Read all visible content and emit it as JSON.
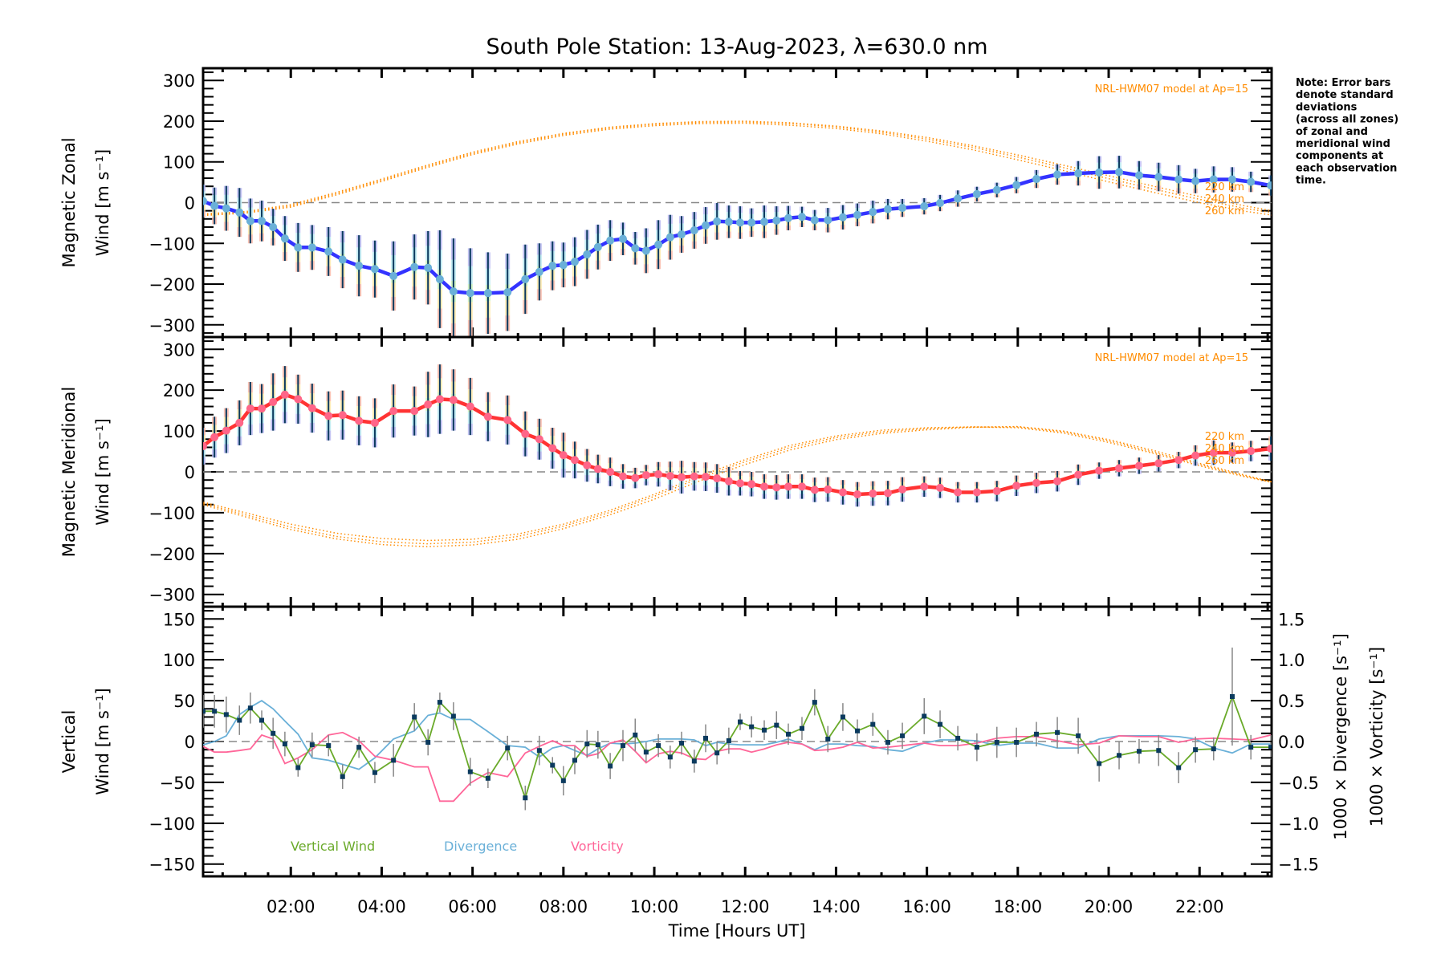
{
  "chart_data": [
    {
      "panel": "zonal",
      "type": "line",
      "title": "South Pole Station: 13-Aug-2023, λ=630.0 nm",
      "ylabel": [
        "Magnetic Zonal",
        "Wind [m s⁻¹]"
      ],
      "ylim": [
        -330,
        330
      ],
      "yticks": [
        300,
        200,
        100,
        0,
        -100,
        -200,
        -300
      ],
      "model_label": "NRL-HWM07 model at Ap=15",
      "model_altitude_labels": [
        "220 km",
        "240 km",
        "260 km"
      ],
      "series_color": "#3333ff",
      "marker_color": "#6ab0d8",
      "errorbar_color": "#0b3a5e",
      "model_color": "#ff8c00",
      "values": [
        4,
        -8,
        -14,
        -24,
        -45,
        -45,
        -60,
        -88,
        -110,
        -110,
        -120,
        -140,
        -155,
        -163,
        -180,
        -158,
        -160,
        -188,
        -218,
        -222,
        -222,
        -220,
        -188,
        -170,
        -155,
        -153,
        -145,
        -127,
        -109,
        -93,
        -89,
        -112,
        -118,
        -103,
        -85,
        -78,
        -68,
        -56,
        -46,
        -47,
        -49,
        -49,
        -47,
        -44,
        -38,
        -35,
        -43,
        -43,
        -36,
        -30,
        -23,
        -16,
        -13,
        -9,
        -1,
        10,
        21,
        31,
        43,
        58,
        69,
        72,
        74,
        75,
        67,
        63,
        57,
        53,
        57,
        57,
        51,
        42
      ],
      "sigma": [
        40,
        45,
        55,
        60,
        55,
        50,
        45,
        55,
        60,
        55,
        60,
        70,
        75,
        70,
        85,
        80,
        90,
        120,
        130,
        110,
        100,
        95,
        85,
        70,
        60,
        55,
        60,
        60,
        55,
        50,
        40,
        40,
        55,
        60,
        55,
        45,
        45,
        45,
        45,
        40,
        40,
        35,
        40,
        35,
        30,
        25,
        25,
        30,
        30,
        28,
        28,
        25,
        22,
        20,
        20,
        20,
        18,
        18,
        20,
        22,
        25,
        30,
        40,
        40,
        35,
        35,
        35,
        30,
        32,
        30,
        25,
        25
      ],
      "models": [
        {
          "name": "220 km",
          "values": [
            -28,
            -22,
            -5,
            25,
            58,
            92,
            124,
            150,
            170,
            185,
            194,
            199,
            200,
            196,
            188,
            176,
            160,
            140,
            117,
            92,
            66,
            40,
            15,
            -8,
            -28
          ]
        },
        {
          "name": "240 km",
          "values": [
            -30,
            -24,
            -8,
            22,
            55,
            89,
            121,
            147,
            168,
            183,
            192,
            197,
            198,
            194,
            186,
            173,
            156,
            136,
            112,
            86,
            59,
            33,
            8,
            -14,
            -32
          ]
        },
        {
          "name": "260 km",
          "values": [
            -32,
            -26,
            -11,
            19,
            52,
            86,
            118,
            144,
            165,
            180,
            189,
            194,
            195,
            190,
            182,
            169,
            151,
            130,
            105,
            79,
            51,
            25,
            0,
            -21,
            -37
          ]
        }
      ]
    },
    {
      "panel": "meridional",
      "type": "line",
      "ylabel": [
        "Magnetic Meridional",
        "Wind [m s⁻¹]"
      ],
      "ylim": [
        -330,
        330
      ],
      "yticks": [
        300,
        200,
        100,
        0,
        -100,
        -200,
        -300
      ],
      "model_label": "NRL-HWM07 model at Ap=15",
      "model_altitude_labels": [
        "220 km",
        "240 km",
        "260 km"
      ],
      "series_color": "#ff3333",
      "marker_color": "#ff6688",
      "errorbar_color": "#0b3a5e",
      "model_color": "#ff8c00",
      "values": [
        63,
        85,
        101,
        120,
        155,
        155,
        171,
        189,
        178,
        156,
        137,
        139,
        125,
        120,
        149,
        149,
        165,
        178,
        176,
        160,
        135,
        127,
        93,
        80,
        58,
        41,
        29,
        16,
        7,
        0,
        -11,
        -15,
        -8,
        -6,
        -10,
        -13,
        -11,
        -12,
        -16,
        -23,
        -28,
        -30,
        -36,
        -38,
        -36,
        -36,
        -44,
        -43,
        -50,
        -55,
        -53,
        -52,
        -43,
        -36,
        -39,
        -50,
        -50,
        -47,
        -34,
        -27,
        -23,
        -7,
        3,
        9,
        15,
        21,
        29,
        40,
        47,
        47,
        51,
        57
      ],
      "sigma": [
        45,
        50,
        55,
        55,
        65,
        60,
        70,
        70,
        60,
        60,
        60,
        60,
        60,
        60,
        65,
        60,
        80,
        85,
        75,
        70,
        60,
        60,
        55,
        50,
        50,
        55,
        45,
        40,
        35,
        35,
        30,
        25,
        25,
        30,
        35,
        40,
        35,
        35,
        35,
        35,
        30,
        30,
        30,
        30,
        30,
        30,
        30,
        30,
        30,
        30,
        30,
        30,
        30,
        25,
        25,
        25,
        25,
        25,
        25,
        25,
        25,
        25,
        20,
        20,
        20,
        20,
        20,
        25,
        30,
        25,
        25,
        30
      ],
      "models": [
        {
          "name": "220 km",
          "values": [
            -72,
            -100,
            -128,
            -150,
            -163,
            -168,
            -165,
            -152,
            -128,
            -95,
            -55,
            -10,
            30,
            65,
            88,
            102,
            108,
            110,
            108,
            95,
            72,
            45,
            15,
            -12,
            -35
          ]
        },
        {
          "name": "240 km",
          "values": [
            -75,
            -105,
            -135,
            -158,
            -171,
            -176,
            -172,
            -158,
            -133,
            -100,
            -60,
            -15,
            25,
            60,
            84,
            98,
            106,
            110,
            110,
            98,
            76,
            48,
            18,
            -10,
            -35
          ]
        },
        {
          "name": "260 km",
          "values": [
            -78,
            -110,
            -141,
            -164,
            -178,
            -183,
            -179,
            -165,
            -139,
            -106,
            -67,
            -22,
            18,
            54,
            79,
            94,
            103,
            109,
            111,
            100,
            79,
            52,
            21,
            -8,
            -36
          ]
        }
      ]
    },
    {
      "panel": "vertical",
      "type": "line",
      "ylabel": [
        "Vertical",
        "Wind [m s⁻¹]"
      ],
      "ylim": [
        -165,
        165
      ],
      "yticks": [
        150,
        100,
        50,
        0,
        -50,
        -100,
        -150
      ],
      "y2label_divergence": "1000 × Divergence [s⁻¹]",
      "y2label_vorticity": "1000 × Vorticity [s⁻¹]",
      "y2lim": [
        -1.65,
        1.65
      ],
      "y2ticks": [
        "1.5",
        "1.0",
        "0.5",
        "0.0",
        "−0.5",
        "−1.0",
        "−1.5"
      ],
      "xlabel": "Time [Hours UT]",
      "xlim_hours": [
        0.07,
        23.57
      ],
      "xticks": [
        "02:00",
        "04:00",
        "06:00",
        "08:00",
        "10:00",
        "12:00",
        "14:00",
        "16:00",
        "18:00",
        "20:00",
        "22:00"
      ],
      "legend": [
        {
          "label": "Vertical Wind",
          "color": "#6aaa2a"
        },
        {
          "label": "Divergence",
          "color": "#6ab0d8"
        },
        {
          "label": "Vorticity",
          "color": "#ff6699"
        }
      ],
      "series": [
        {
          "name": "Vertical Wind",
          "values": [
            37,
            37,
            33,
            26,
            41,
            26,
            10,
            -3,
            -32,
            -4,
            -5,
            -43,
            -7,
            -38,
            -23,
            30,
            -1,
            48,
            31,
            -37,
            -45,
            -8,
            -69,
            -11,
            -29,
            -48,
            -23,
            -3,
            -4,
            -30,
            -5,
            8,
            -13,
            -5,
            -19,
            -2,
            -24,
            4,
            -14,
            1,
            24,
            18,
            14,
            20,
            9,
            16,
            48,
            3,
            30,
            13,
            21,
            -1,
            7,
            31,
            21,
            4,
            -7,
            -1,
            -1,
            9,
            11,
            7,
            -27,
            -17,
            -12,
            -11,
            -32,
            -10,
            -9,
            55,
            -7,
            -7
          ],
          "sigma": [
            20,
            20,
            22,
            18,
            19,
            12,
            19,
            15,
            11,
            15,
            13,
            15,
            13,
            13,
            20,
            17,
            16,
            12,
            17,
            17,
            12,
            15,
            15,
            18,
            10,
            18,
            17,
            17,
            17,
            16,
            19,
            20,
            12,
            14,
            14,
            14,
            14,
            17,
            14,
            16,
            10,
            13,
            12,
            17,
            13,
            14,
            16,
            16,
            17,
            14,
            14,
            15,
            16,
            22,
            17,
            15,
            17,
            19,
            18,
            15,
            19,
            22,
            22,
            17,
            15,
            19,
            19,
            16,
            14,
            60,
            15,
            15
          ]
        },
        {
          "name": "Divergence",
          "values": [
            -0.04,
            0.0,
            0.07,
            0.33,
            0.42,
            0.5,
            0.4,
            0.25,
            0.09,
            -0.2,
            -0.23,
            -0.28,
            -0.34,
            -0.2,
            0.03,
            0.13,
            0.32,
            0.35,
            0.27,
            0.27,
            0.12,
            -0.05,
            -0.07,
            -0.19,
            -0.08,
            -0.05,
            -0.11,
            -0.17,
            -0.09,
            -0.02,
            -0.03,
            -0.02,
            0.0,
            0.03,
            0.03,
            0.03,
            0.02,
            -0.05,
            -0.01,
            -0.03,
            -0.04,
            -0.04,
            -0.04,
            -0.01,
            0.03,
            -0.03,
            -0.1,
            -0.03,
            -0.03,
            -0.05,
            -0.06,
            -0.1,
            -0.12,
            -0.02,
            0.02,
            0.02,
            0.01,
            -0.05,
            -0.02,
            -0.02,
            -0.08,
            -0.08,
            0.03,
            0.07,
            0.07,
            0.07,
            0.06,
            0.03,
            -0.08,
            -0.14,
            -0.03,
            -0.03
          ]
        },
        {
          "name": "Vorticity",
          "values": [
            -0.06,
            -0.13,
            -0.13,
            -0.11,
            -0.09,
            0.08,
            0.03,
            -0.27,
            -0.2,
            -0.1,
            0.08,
            0.11,
            0.01,
            -0.18,
            -0.23,
            -0.31,
            -0.31,
            -0.73,
            -0.73,
            -0.51,
            -0.38,
            -0.43,
            -0.14,
            -0.06,
            0.01,
            -0.05,
            -0.05,
            -0.18,
            -0.15,
            -0.02,
            0.02,
            -0.12,
            -0.26,
            -0.15,
            -0.12,
            -0.14,
            -0.21,
            -0.22,
            -0.12,
            -0.09,
            -0.09,
            -0.13,
            -0.09,
            -0.04,
            -0.01,
            -0.03,
            -0.11,
            -0.1,
            -0.07,
            -0.01,
            -0.08,
            -0.07,
            -0.05,
            -0.02,
            -0.05,
            -0.05,
            -0.02,
            0.04,
            0.06,
            0.06,
            0.01,
            -0.04,
            -0.02,
            0.07,
            0.06,
            0.06,
            -0.01,
            0.03,
            0.04,
            0.03,
            0.02,
            0.08
          ]
        }
      ]
    }
  ],
  "times_hours": [
    0.07,
    0.32,
    0.58,
    0.87,
    1.11,
    1.36,
    1.61,
    1.87,
    2.16,
    2.47,
    2.83,
    3.14,
    3.5,
    3.85,
    4.26,
    4.72,
    5.02,
    5.28,
    5.58,
    5.95,
    6.34,
    6.77,
    7.16,
    7.47,
    7.76,
    8.0,
    8.25,
    8.52,
    8.76,
    9.03,
    9.31,
    9.58,
    9.82,
    10.09,
    10.35,
    10.6,
    10.88,
    11.13,
    11.38,
    11.64,
    11.89,
    12.14,
    12.42,
    12.69,
    12.95,
    13.25,
    13.53,
    13.82,
    14.15,
    14.47,
    14.81,
    15.14,
    15.46,
    15.94,
    16.29,
    16.68,
    17.1,
    17.54,
    17.97,
    18.41,
    18.87,
    19.33,
    19.79,
    20.23,
    20.67,
    21.1,
    21.54,
    21.91,
    22.31,
    22.72,
    23.13,
    23.57
  ],
  "model_times_hours": [
    0,
    1,
    2,
    3,
    4,
    5,
    6,
    7,
    8,
    9,
    10,
    11,
    12,
    13,
    14,
    15,
    16,
    17,
    18,
    19,
    20,
    21,
    22,
    23,
    24
  ],
  "note": [
    "Note: Error bars",
    "denote standard",
    "deviations",
    "(across all zones)",
    "of zonal and",
    "meridional wind",
    "components at",
    "each observation",
    "time."
  ]
}
